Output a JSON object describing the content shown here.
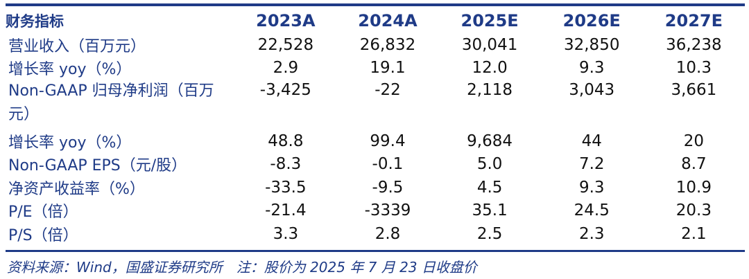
{
  "table": {
    "header": {
      "label": "财务指标",
      "years": [
        "2023A",
        "2024A",
        "2025E",
        "2026E",
        "2027E"
      ]
    },
    "rows": [
      {
        "label": "营业收入（百万元）",
        "values": [
          "22,528",
          "26,832",
          "30,041",
          "32,850",
          "36,238"
        ]
      },
      {
        "label": "增长率 yoy（%）",
        "values": [
          "2.9",
          "19.1",
          "12.0",
          "9.3",
          "10.3"
        ]
      },
      {
        "label": "Non-GAAP 归母净利润（百万元）",
        "values": [
          "-3,425",
          "-22",
          "2,118",
          "3,043",
          "3,661"
        ]
      },
      {
        "label": "增长率 yoy（%）",
        "values": [
          "48.8",
          "99.4",
          "9,684",
          "44",
          "20"
        ]
      },
      {
        "label": "Non-GAAP EPS（元/股）",
        "values": [
          "-8.3",
          "-0.1",
          "5.0",
          "7.2",
          "8.7"
        ]
      },
      {
        "label": "净资产收益率（%）",
        "values": [
          "-33.5",
          "-9.5",
          "4.5",
          "9.3",
          "10.9"
        ]
      },
      {
        "label": "P/E（倍）",
        "values": [
          "-21.4",
          "-3339",
          "35.1",
          "24.5",
          "20.3"
        ]
      },
      {
        "label": "P/S（倍）",
        "values": [
          "3.3",
          "2.8",
          "2.5",
          "2.3",
          "2.1"
        ]
      }
    ]
  },
  "source": "资料来源：Wind，国盛证券研究所　注：股价为 2025 年 7 月 23 日收盘价"
}
